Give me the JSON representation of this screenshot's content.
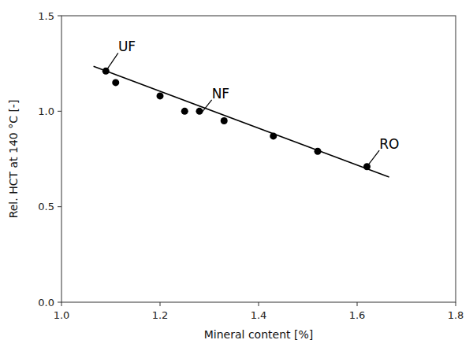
{
  "chart_data": {
    "type": "scatter",
    "xlabel": "Mineral content  [%]",
    "ylabel": "Rel. HCT at 140 °C  [-]",
    "series": [
      {
        "type": "line",
        "color": "#000000",
        "x": [
          1.065,
          1.665
        ],
        "values": [
          1.235,
          0.655
        ]
      },
      {
        "type": "scatter",
        "color": "#000000",
        "x": [
          1.09,
          1.11,
          1.2,
          1.25,
          1.28,
          1.33,
          1.43,
          1.52,
          1.62
        ],
        "values": [
          1.21,
          1.15,
          1.08,
          1.0,
          1.0,
          0.95,
          0.87,
          0.79,
          0.71
        ]
      }
    ],
    "xlim": [
      1.0,
      1.8
    ],
    "ylim": [
      0.0,
      1.5
    ],
    "xticks": [
      {
        "value": 1.0,
        "label": "1.0"
      },
      1.2,
      1.4,
      1.6,
      1.8
    ],
    "yticks": [
      {
        "value": 0.0,
        "label": "0.0"
      },
      0.5,
      {
        "value": 1.0,
        "label": "1.0"
      },
      1.5
    ],
    "annotations": [
      {
        "text": "UF",
        "x": 1.09,
        "y": 1.21,
        "tx": 1.115,
        "ty": 1.305
      },
      {
        "text": "NF",
        "x": 1.285,
        "y": 0.995,
        "tx": 1.305,
        "ty": 1.06
      },
      {
        "text": "RO",
        "x": 1.62,
        "y": 0.71,
        "tx": 1.645,
        "ty": 0.795
      }
    ]
  }
}
